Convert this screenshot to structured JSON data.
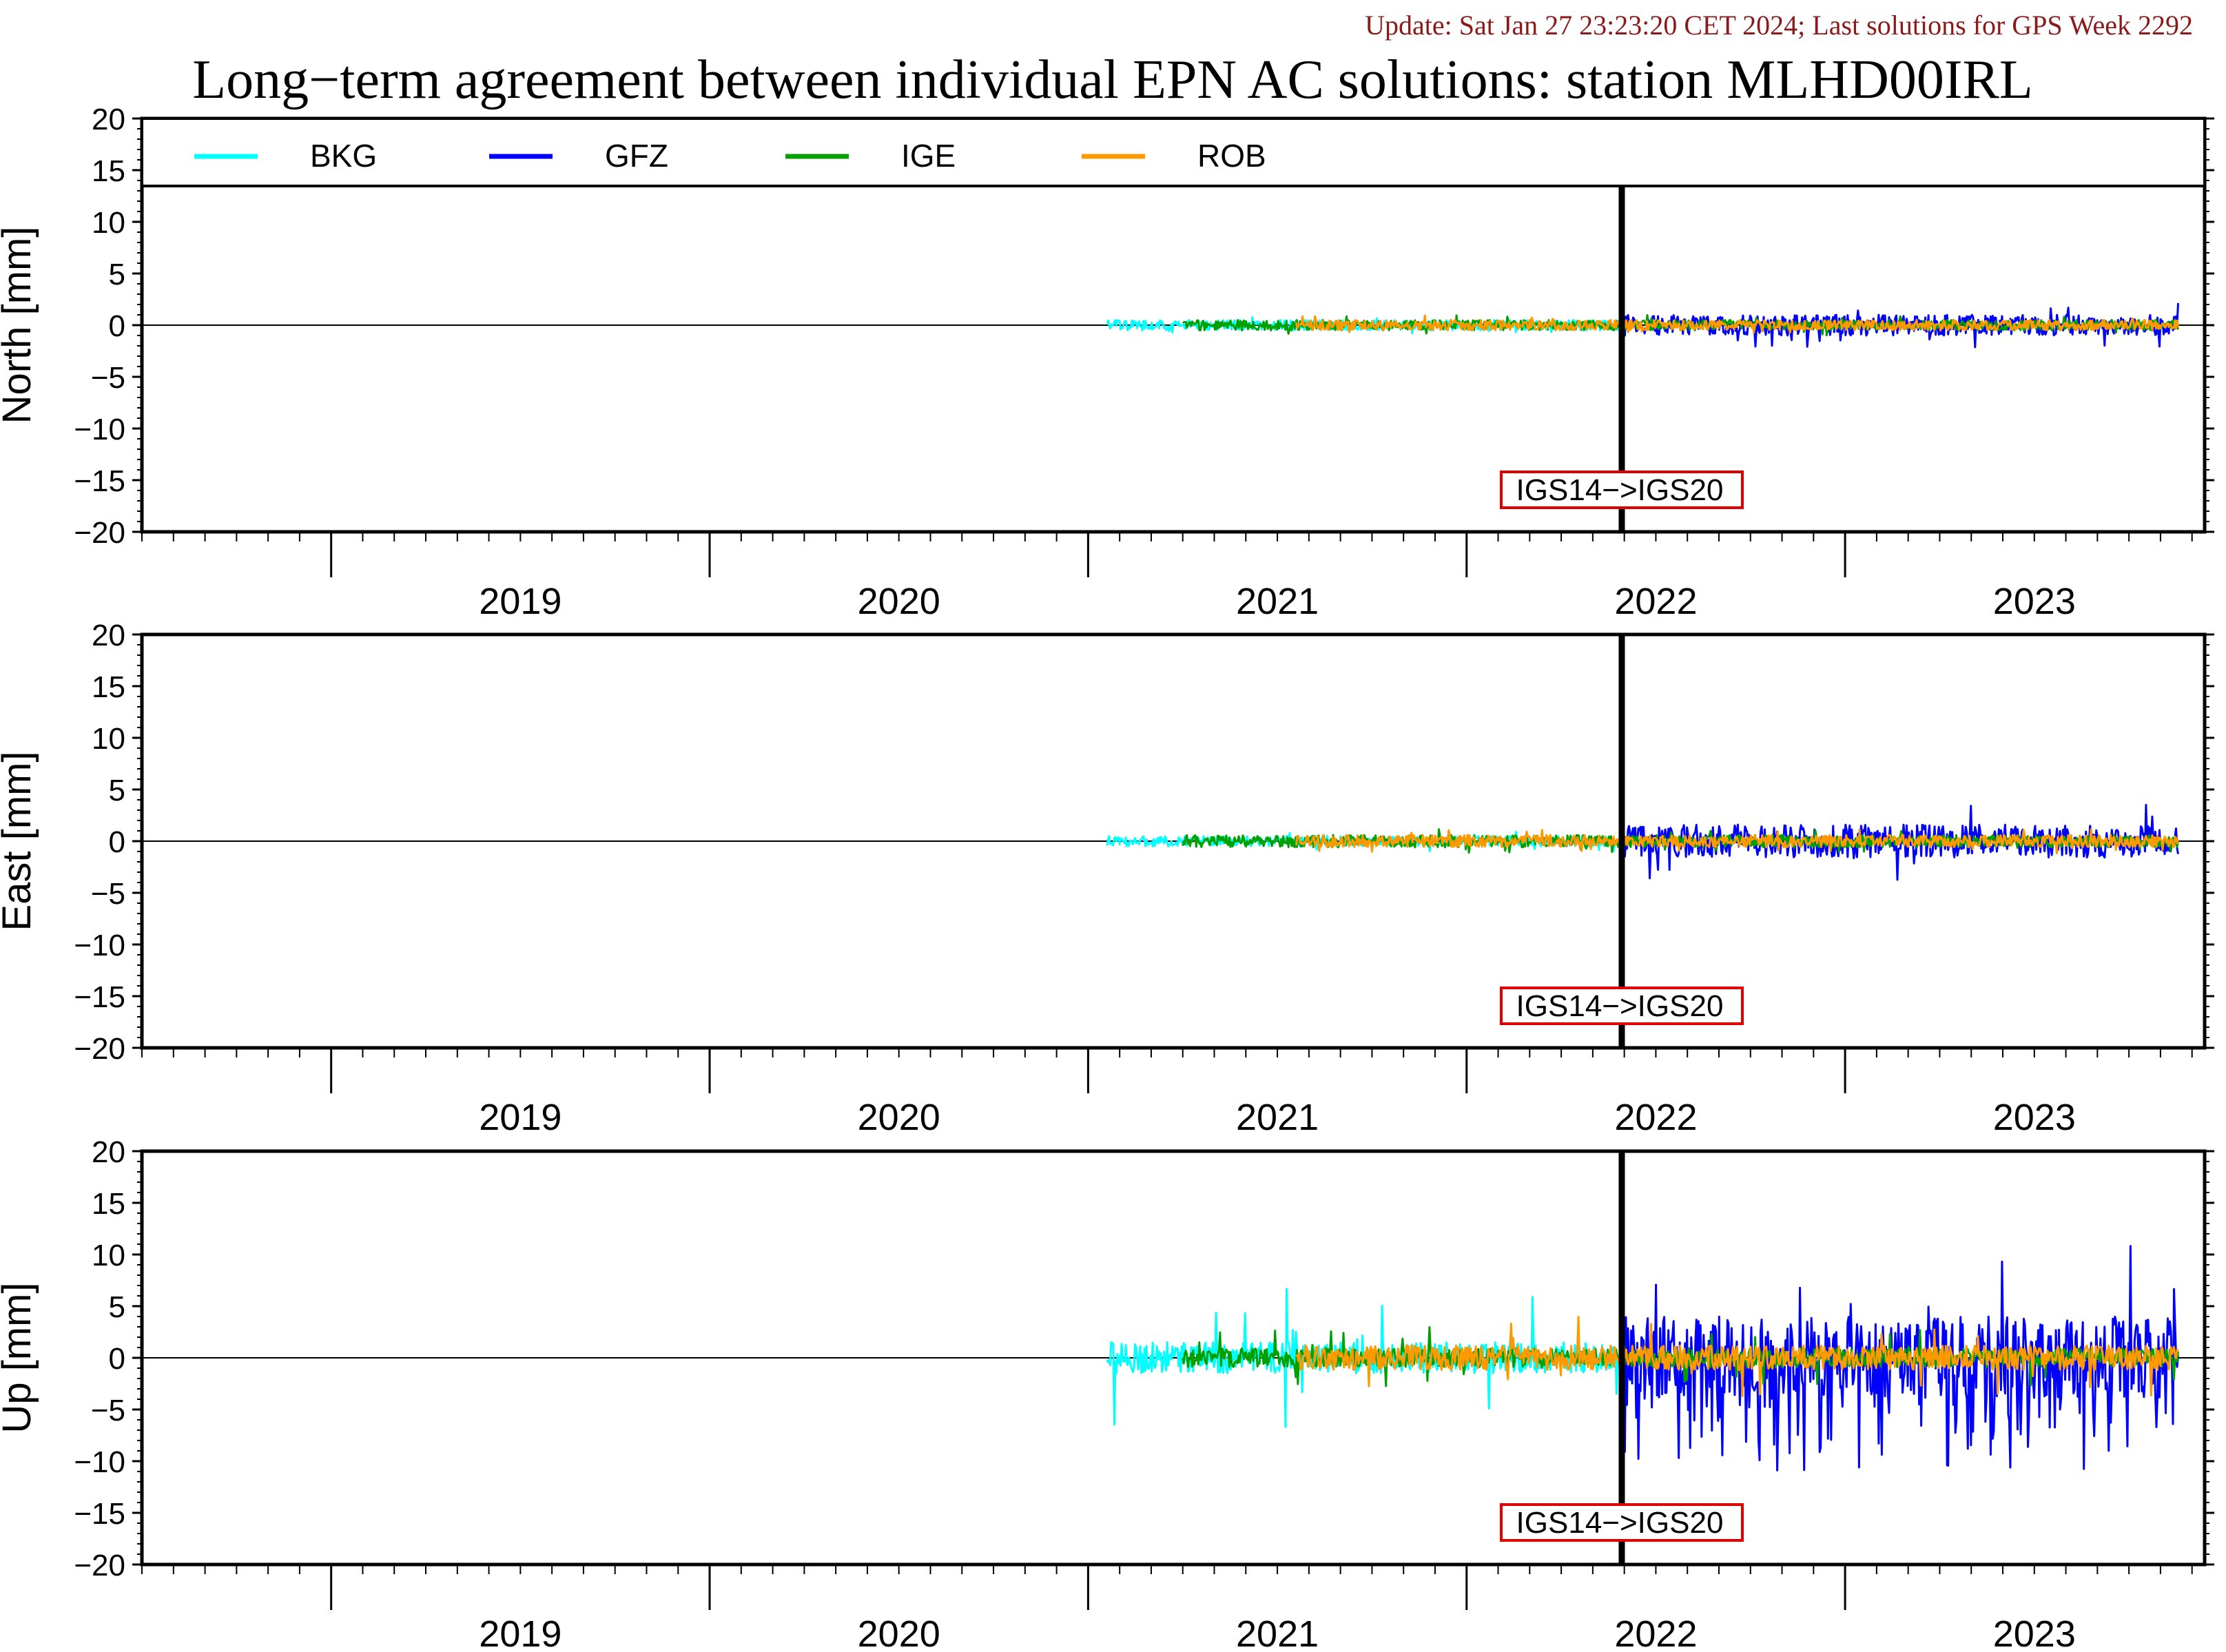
{
  "update_text": "Update: Sat Jan 27 23:23:20 CET 2024; Last solutions for GPS Week 2292",
  "title": "Long−term agreement between individual EPN AC solutions: station MLHD00IRL",
  "colors": {
    "update_text": "#8b1a1a",
    "BKG": "#00ffff",
    "GFZ": "#0000ff",
    "IGE": "#00a000",
    "ROB": "#ff9900",
    "event_box": "#e00000"
  },
  "chart_data": [
    {
      "type": "line",
      "ylabel": "North [mm]",
      "ylim": [
        -20,
        20
      ],
      "yticks": [
        "20",
        "15",
        "10",
        "5",
        "0",
        "−5",
        "−10",
        "−15",
        "−20"
      ],
      "xlim": [
        2018.5,
        2023.95
      ],
      "xtick_labels": [
        "2019",
        "2020",
        "2021",
        "2022",
        "2023"
      ],
      "legend": [
        "BKG",
        "GFZ",
        "IGE",
        "ROB"
      ],
      "event": {
        "x": 2022.41,
        "label": "IGS14−>IGS20"
      },
      "series": [
        {
          "name": "BKG",
          "x_range": [
            2021.05,
            2022.41
          ],
          "amplitude": 0.5,
          "spike": 0.8
        },
        {
          "name": "GFZ",
          "x_range": [
            2022.41,
            2023.88
          ],
          "amplitude": 1.0,
          "spike": 2.2
        },
        {
          "name": "IGE",
          "x_range": [
            2021.25,
            2023.88
          ],
          "amplitude": 0.5,
          "spike": 1.0
        },
        {
          "name": "ROB",
          "x_range": [
            2021.55,
            2023.88
          ],
          "amplitude": 0.5,
          "spike": 1.0
        }
      ]
    },
    {
      "type": "line",
      "ylabel": "East [mm]",
      "ylim": [
        -20,
        20
      ],
      "yticks": [
        "20",
        "15",
        "10",
        "5",
        "0",
        "−5",
        "−10",
        "−15",
        "−20"
      ],
      "xlim": [
        2018.5,
        2023.95
      ],
      "xtick_labels": [
        "2019",
        "2020",
        "2021",
        "2022",
        "2023"
      ],
      "event": {
        "x": 2022.41,
        "label": "IGS14−>IGS20"
      },
      "series": [
        {
          "name": "BKG",
          "x_range": [
            2021.05,
            2022.41
          ],
          "amplitude": 0.5,
          "spike": 1.0
        },
        {
          "name": "GFZ",
          "x_range": [
            2022.41,
            2023.88
          ],
          "amplitude": 1.6,
          "spike": 4.2
        },
        {
          "name": "IGE",
          "x_range": [
            2021.25,
            2023.88
          ],
          "amplitude": 0.6,
          "spike": 1.2
        },
        {
          "name": "ROB",
          "x_range": [
            2021.55,
            2023.88
          ],
          "amplitude": 0.6,
          "spike": 1.2
        }
      ]
    },
    {
      "type": "line",
      "ylabel": "Up [mm]",
      "ylim": [
        -20,
        20
      ],
      "yticks": [
        "20",
        "15",
        "10",
        "5",
        "0",
        "−5",
        "−10",
        "−15",
        "−20"
      ],
      "xlim": [
        2018.5,
        2023.95
      ],
      "xtick_labels": [
        "2019",
        "2020",
        "2021",
        "2022",
        "2023"
      ],
      "event": {
        "x": 2022.41,
        "label": "IGS14−>IGS20"
      },
      "series": [
        {
          "name": "BKG",
          "x_range": [
            2021.05,
            2022.41
          ],
          "amplitude": 1.5,
          "spike": 6.8
        },
        {
          "name": "GFZ",
          "x_range": [
            2022.41,
            2023.88
          ],
          "amplitude": 4.0,
          "spike": 11.0
        },
        {
          "name": "IGE",
          "x_range": [
            2021.25,
            2023.88
          ],
          "amplitude": 0.9,
          "spike": 3.0
        },
        {
          "name": "ROB",
          "x_range": [
            2021.55,
            2023.88
          ],
          "amplitude": 1.2,
          "spike": 4.0
        }
      ]
    }
  ]
}
